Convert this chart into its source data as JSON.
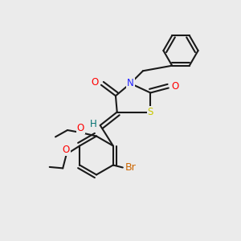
{
  "bg": "#ebebeb",
  "bond_lw": 1.5,
  "bond_color": "#1a1a1a",
  "colors": {
    "O": "#ff0000",
    "N": "#2020ff",
    "S": "#c8c800",
    "Br": "#cc6600",
    "H": "#007070",
    "C": "#1a1a1a"
  },
  "fs": 8.5,
  "dbo": 0.018
}
